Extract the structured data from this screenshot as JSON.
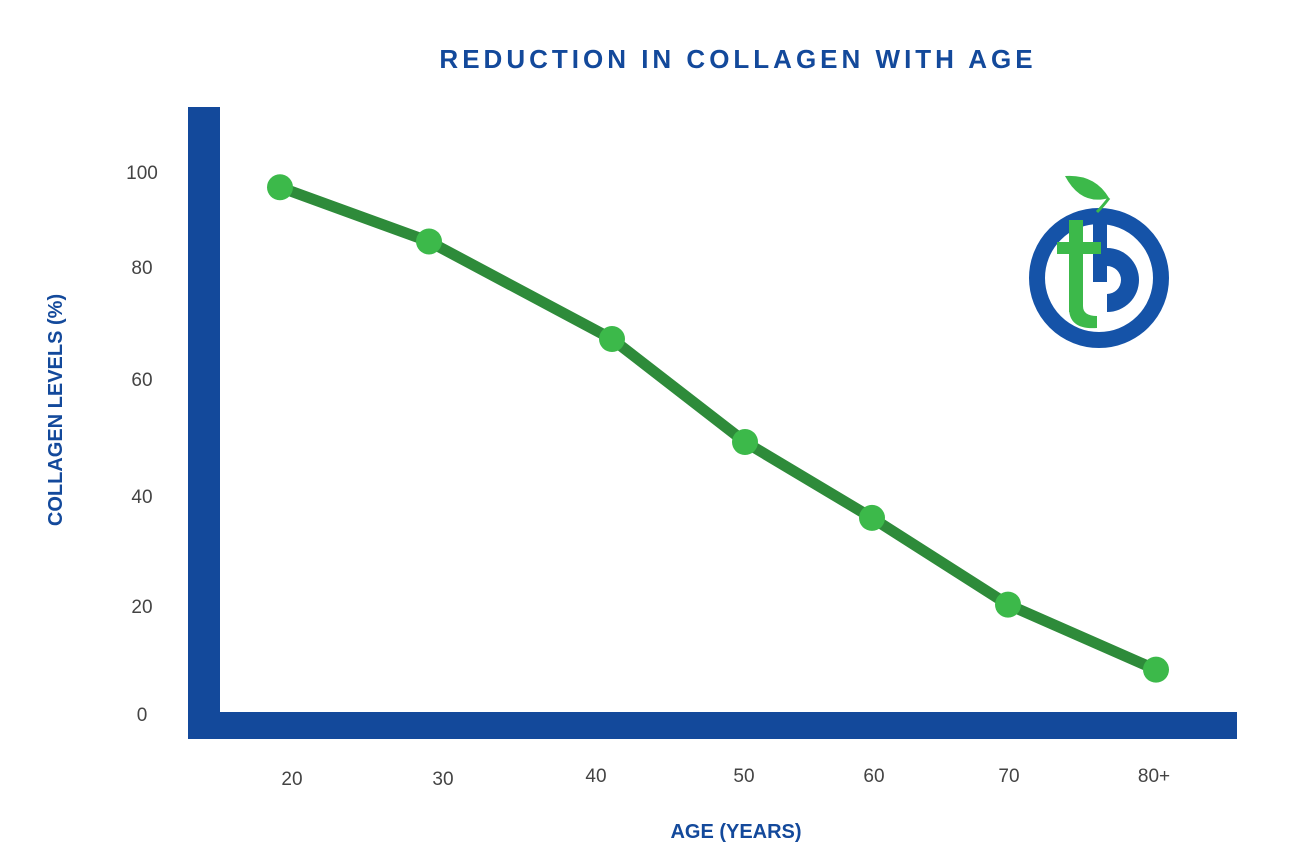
{
  "colors": {
    "axis": "#13499b",
    "line": "#2e8b3a",
    "marker": "#3cb94a",
    "title": "#13499b",
    "tick": "#444444",
    "logo_blue": "#1553a8",
    "logo_green": "#3cb94a"
  },
  "chart_data": {
    "type": "line",
    "title": "REDUCTION IN COLLAGEN WITH AGE",
    "xlabel": "AGE (YEARS)",
    "ylabel": "COLLAGEN LEVELS (%)",
    "categories": [
      "20",
      "30",
      "40",
      "50",
      "60",
      "70",
      "80+"
    ],
    "series": [
      {
        "name": "Collagen levels",
        "values": [
          97,
          87,
          69,
          50,
          36,
          20,
          8
        ]
      }
    ],
    "y_ticks": [
      "0",
      "20",
      "40",
      "60",
      "80",
      "100"
    ],
    "ylim": [
      0,
      110
    ],
    "grid": false,
    "legend": "none"
  },
  "logo": {
    "icon": "leaf-tb-circle-logo"
  }
}
